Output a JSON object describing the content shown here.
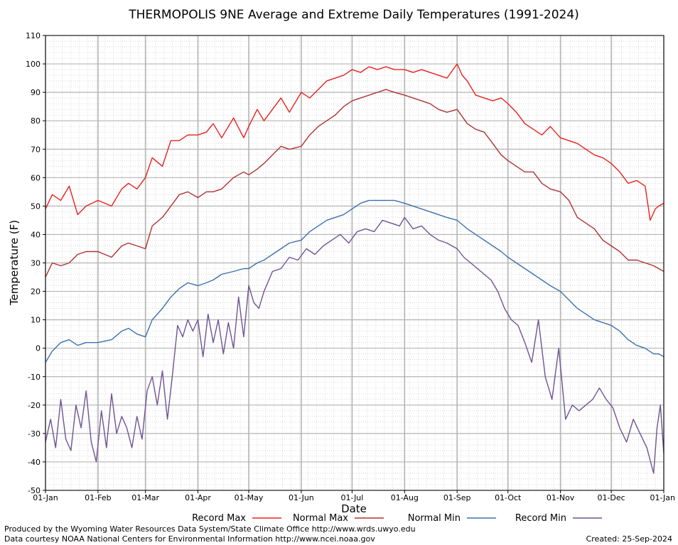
{
  "chart_data": {
    "type": "line",
    "title": "THERMOPOLIS 9NE Average and Extreme Daily Temperatures (1991-2024)",
    "xlabel": "Date",
    "ylabel": "Temperature (F)",
    "ylim": [
      -50,
      110
    ],
    "xlim": [
      "01-Jan",
      "01-Jan"
    ],
    "y_ticks": [
      -50,
      -40,
      -30,
      -20,
      -10,
      0,
      10,
      20,
      30,
      40,
      50,
      60,
      70,
      80,
      90,
      100,
      110
    ],
    "x_tick_labels": [
      "01-Jan",
      "01-Feb",
      "01-Mar",
      "01-Apr",
      "01-May",
      "01-Jun",
      "01-Jul",
      "01-Aug",
      "01-Sep",
      "01-Oct",
      "01-Nov",
      "01-Dec",
      "01-Jan"
    ],
    "x_ticks_day_of_year": [
      1,
      32,
      60,
      91,
      121,
      152,
      182,
      213,
      244,
      274,
      305,
      335,
      366
    ],
    "grid": true,
    "legend_position": "bottom",
    "series": [
      {
        "name": "Record Max",
        "color": "#e8201e",
        "x": [
          1,
          5,
          10,
          15,
          20,
          25,
          32,
          40,
          46,
          50,
          55,
          60,
          64,
          70,
          75,
          80,
          85,
          91,
          96,
          100,
          105,
          112,
          118,
          121,
          126,
          130,
          135,
          140,
          145,
          152,
          157,
          162,
          167,
          172,
          177,
          182,
          187,
          192,
          197,
          202,
          207,
          213,
          218,
          223,
          228,
          233,
          238,
          244,
          247,
          250,
          255,
          260,
          265,
          270,
          274,
          279,
          284,
          289,
          294,
          299,
          305,
          310,
          315,
          320,
          325,
          330,
          335,
          340,
          345,
          350,
          355,
          358,
          361,
          363,
          366
        ],
        "values": [
          49,
          54,
          52,
          57,
          47,
          50,
          52,
          50,
          56,
          58,
          56,
          60,
          67,
          64,
          73,
          73,
          75,
          75,
          76,
          79,
          74,
          81,
          74,
          78,
          84,
          80,
          84,
          88,
          83,
          90,
          88,
          91,
          94,
          95,
          96,
          98,
          97,
          99,
          98,
          99,
          98,
          98,
          97,
          98,
          97,
          96,
          95,
          100,
          96,
          94,
          89,
          88,
          87,
          88,
          86,
          83,
          79,
          77,
          75,
          78,
          74,
          73,
          72,
          70,
          68,
          67,
          65,
          62,
          58,
          59,
          57,
          45,
          49,
          50,
          51
        ]
      },
      {
        "name": "Normal Max",
        "color": "#b03232",
        "x": [
          1,
          5,
          10,
          15,
          20,
          25,
          32,
          40,
          46,
          50,
          55,
          60,
          64,
          70,
          75,
          80,
          85,
          91,
          96,
          100,
          105,
          112,
          118,
          121,
          126,
          130,
          135,
          140,
          145,
          152,
          157,
          162,
          167,
          172,
          177,
          182,
          187,
          192,
          197,
          202,
          207,
          213,
          218,
          223,
          228,
          233,
          238,
          244,
          250,
          255,
          260,
          265,
          270,
          274,
          279,
          284,
          289,
          294,
          299,
          305,
          310,
          315,
          320,
          325,
          330,
          335,
          340,
          345,
          350,
          355,
          360,
          363,
          366
        ],
        "values": [
          25,
          30,
          29,
          30,
          33,
          34,
          34,
          32,
          36,
          37,
          36,
          35,
          43,
          46,
          50,
          54,
          55,
          53,
          55,
          55,
          56,
          60,
          62,
          61,
          63,
          65,
          68,
          71,
          70,
          71,
          75,
          78,
          80,
          82,
          85,
          87,
          88,
          89,
          90,
          91,
          90,
          89,
          88,
          87,
          86,
          84,
          83,
          84,
          79,
          77,
          76,
          72,
          68,
          66,
          64,
          62,
          62,
          58,
          56,
          55,
          52,
          46,
          44,
          42,
          38,
          36,
          34,
          31,
          31,
          30,
          29,
          28,
          27
        ]
      },
      {
        "name": "Normal Min",
        "color": "#3a72ad",
        "x": [
          1,
          5,
          10,
          15,
          20,
          25,
          32,
          40,
          46,
          50,
          55,
          60,
          64,
          70,
          75,
          80,
          85,
          91,
          96,
          100,
          105,
          112,
          118,
          121,
          126,
          130,
          135,
          140,
          145,
          152,
          157,
          162,
          167,
          172,
          177,
          182,
          187,
          192,
          197,
          202,
          207,
          213,
          218,
          223,
          228,
          233,
          238,
          244,
          250,
          255,
          260,
          265,
          270,
          274,
          279,
          284,
          289,
          294,
          299,
          305,
          310,
          315,
          320,
          325,
          330,
          335,
          340,
          345,
          350,
          355,
          360,
          363,
          366
        ],
        "values": [
          -5,
          -1,
          2,
          3,
          1,
          2,
          2,
          3,
          6,
          7,
          5,
          4,
          10,
          14,
          18,
          21,
          23,
          22,
          23,
          24,
          26,
          27,
          28,
          28,
          30,
          31,
          33,
          35,
          37,
          38,
          41,
          43,
          45,
          46,
          47,
          49,
          51,
          52,
          52,
          52,
          52,
          51,
          50,
          49,
          48,
          47,
          46,
          45,
          42,
          40,
          38,
          36,
          34,
          32,
          30,
          28,
          26,
          24,
          22,
          20,
          17,
          14,
          12,
          10,
          9,
          8,
          6,
          3,
          1,
          0,
          -2,
          -2,
          -3
        ]
      },
      {
        "name": "Record Min",
        "color": "#6e5494",
        "x": [
          1,
          4,
          7,
          10,
          13,
          16,
          19,
          22,
          25,
          28,
          31,
          34,
          37,
          40,
          43,
          46,
          49,
          52,
          55,
          58,
          61,
          64,
          67,
          70,
          73,
          76,
          79,
          82,
          85,
          88,
          91,
          94,
          97,
          100,
          103,
          106,
          109,
          112,
          115,
          118,
          121,
          124,
          127,
          130,
          135,
          140,
          145,
          150,
          155,
          160,
          165,
          170,
          175,
          180,
          185,
          190,
          195,
          200,
          205,
          210,
          213,
          218,
          223,
          228,
          233,
          238,
          244,
          248,
          252,
          256,
          260,
          264,
          268,
          272,
          276,
          280,
          284,
          288,
          292,
          296,
          300,
          304,
          308,
          312,
          316,
          320,
          324,
          328,
          332,
          336,
          340,
          344,
          348,
          352,
          356,
          360,
          362,
          364,
          366
        ],
        "values": [
          -33,
          -25,
          -35,
          -18,
          -32,
          -36,
          -20,
          -28,
          -15,
          -33,
          -40,
          -22,
          -35,
          -16,
          -30,
          -24,
          -28,
          -35,
          -24,
          -32,
          -15,
          -10,
          -20,
          -8,
          -25,
          -9,
          8,
          4,
          10,
          6,
          10,
          -3,
          12,
          2,
          10,
          -2,
          9,
          0,
          18,
          4,
          22,
          16,
          14,
          20,
          27,
          28,
          32,
          31,
          35,
          33,
          36,
          38,
          40,
          37,
          41,
          42,
          41,
          45,
          44,
          43,
          46,
          42,
          43,
          40,
          38,
          37,
          35,
          32,
          30,
          28,
          26,
          24,
          20,
          14,
          10,
          8,
          2,
          -5,
          10,
          -10,
          -18,
          0,
          -25,
          -20,
          -22,
          -20,
          -18,
          -14,
          -18,
          -21,
          -28,
          -33,
          -25,
          -30,
          -35,
          -44,
          -28,
          -20,
          -37
        ]
      }
    ]
  },
  "footer": {
    "line1": "Produced by the Wyoming Water Resources Data System/State Climate Office http://www.wrds.uwyo.edu",
    "line2": "Data courtesy NOAA National Centers for Environmental Information http://www.ncei.noaa.gov",
    "created": "Created:  25-Sep-2024"
  }
}
